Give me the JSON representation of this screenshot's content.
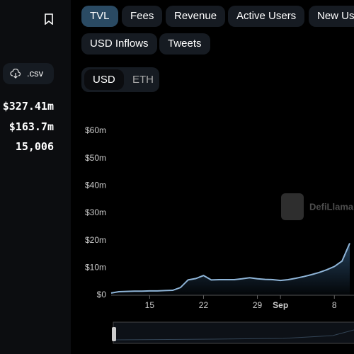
{
  "sidebar": {
    "csv_button": ".csv",
    "stats": [
      "$327.41m",
      "$163.7m",
      "15,006"
    ]
  },
  "tabs": [
    "TVL",
    "Fees",
    "Revenue",
    "Active Users",
    "New Users",
    "USD Inflows",
    "Tweets"
  ],
  "currency_toggle": [
    "USD",
    "ETH"
  ],
  "watermark": "DefiLlama",
  "chart_data": {
    "type": "area",
    "color": "#8fb5d8",
    "x": [
      "08-10",
      "08-11",
      "08-12",
      "08-13",
      "08-14",
      "08-15",
      "08-16",
      "08-17",
      "08-18",
      "08-19",
      "08-20",
      "08-21",
      "08-22",
      "08-23",
      "08-24",
      "08-25",
      "08-26",
      "08-27",
      "08-28",
      "08-29",
      "08-30",
      "08-31",
      "09-01",
      "09-02",
      "09-03",
      "09-04",
      "09-05",
      "09-06",
      "09-07",
      "09-08",
      "09-09",
      "09-10"
    ],
    "values": [
      0.8,
      1.3,
      1.4,
      1.5,
      1.5,
      1.6,
      1.6,
      1.7,
      1.8,
      2.8,
      5.6,
      6.1,
      7.2,
      5.6,
      5.7,
      5.7,
      5.7,
      6.0,
      6.4,
      6.0,
      5.8,
      5.7,
      5.4,
      5.7,
      6.2,
      6.8,
      7.5,
      8.3,
      9.3,
      10.5,
      12.5,
      19
    ],
    "xlim": [
      "08-10",
      "09-10"
    ],
    "xticks": [
      {
        "value": "08-15",
        "label": "15"
      },
      {
        "value": "08-22",
        "label": "22"
      },
      {
        "value": "08-29",
        "label": "29"
      },
      {
        "value": "09-01",
        "label": "Sep"
      },
      {
        "value": "09-08",
        "label": "8"
      }
    ],
    "ylim": [
      0,
      60
    ],
    "yticks": [
      {
        "value": 0,
        "label": "$0"
      },
      {
        "value": 10,
        "label": "$10m"
      },
      {
        "value": 20,
        "label": "$20m"
      },
      {
        "value": 30,
        "label": "$30m"
      },
      {
        "value": 40,
        "label": "$40m"
      },
      {
        "value": 50,
        "label": "$50m"
      },
      {
        "value": 60,
        "label": "$60m"
      }
    ],
    "grid": false
  }
}
